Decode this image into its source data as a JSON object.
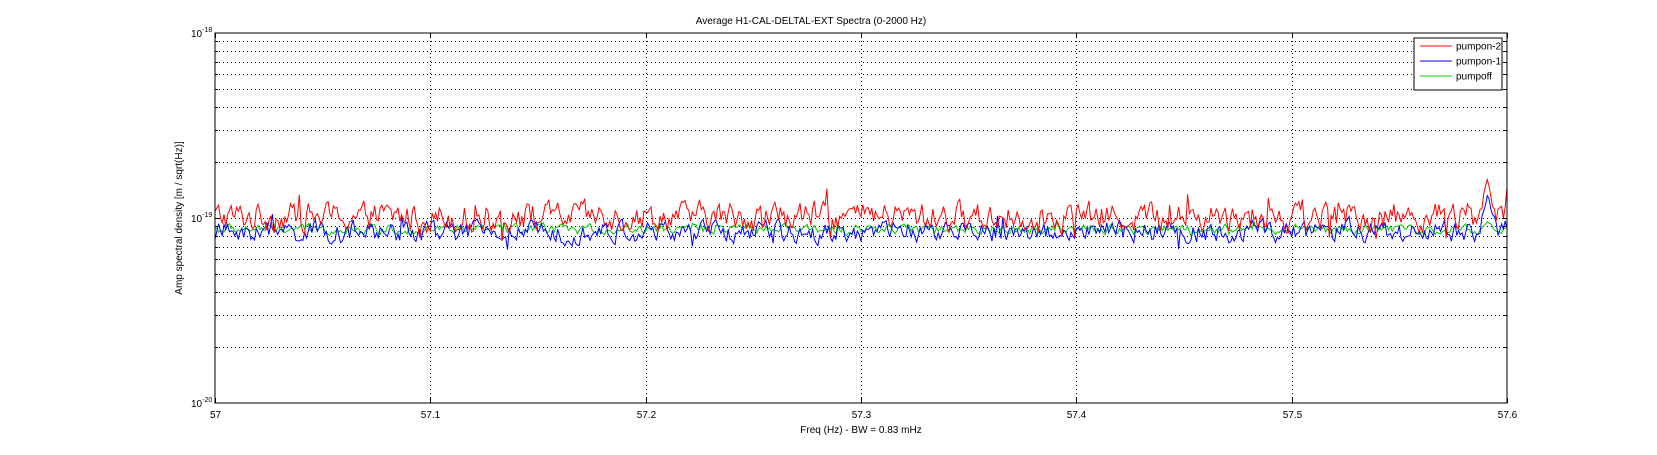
{
  "chart_data": {
    "type": "line",
    "title": "Average H1-CAL-DELTAL-EXT Spectra (0-2000 Hz)",
    "xlabel": "Freq (Hz) - BW = 0.83 mHz",
    "ylabel": "Amp spectral density [m / sqrt(Hz)]",
    "xlim": [
      57.0,
      57.6
    ],
    "ylim": [
      1e-20,
      1e-18
    ],
    "yscale": "log",
    "grid": true,
    "legend_position": "top-right",
    "x_ticks": [
      "57",
      "57.1",
      "57.2",
      "57.3",
      "57.4",
      "57.5",
      "57.6"
    ],
    "y_ticks": [
      {
        "base": "10",
        "exp": "-20"
      },
      {
        "base": "10",
        "exp": "-19"
      },
      {
        "base": "10",
        "exp": "-18"
      }
    ],
    "series": [
      {
        "name": "pumpon-2",
        "color": "#ff0000",
        "mean": 1.02e-19,
        "spread": 0.12,
        "peak_freq": 57.591,
        "peak_value": 1.65e-19
      },
      {
        "name": "pumpon-1",
        "color": "#0000ff",
        "mean": 8.4e-20,
        "spread": 0.09,
        "peak_freq": 57.591,
        "peak_value": 1.35e-19
      },
      {
        "name": "pumpoff",
        "color": "#00cc00",
        "mean": 8.7e-20,
        "spread": 0.04,
        "peak_freq": 57.591,
        "peak_value": 9.6e-20
      }
    ]
  }
}
